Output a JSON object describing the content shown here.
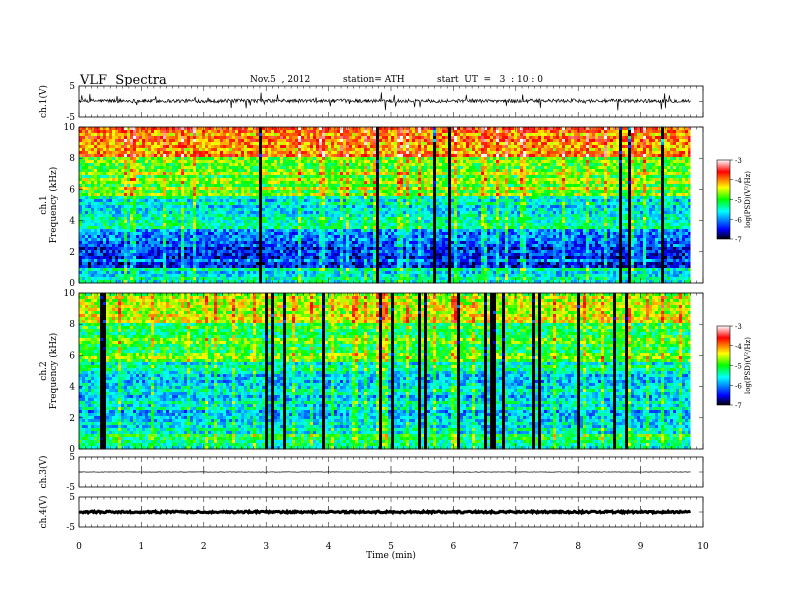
{
  "header": {
    "title": "VLF  Spectra",
    "date": "Nov.5  , 2012",
    "station": "station= ATH",
    "start": "start  UT  =   3  : 10 : 0"
  },
  "chart_data": [
    {
      "type": "line",
      "title": "",
      "ylabel": "ch.1(V)",
      "ylim": [
        -5,
        5
      ],
      "yticks": [
        "5",
        "-5"
      ],
      "description_values": {
        "baseline": 0,
        "noise_amplitude": 1.5
      },
      "xlim": [
        0,
        10
      ]
    },
    {
      "type": "heatmap",
      "ylabel": "ch.1\nFrequency (kHz)",
      "ylabel_lines": [
        "ch.1",
        "Frequency  (kHz)"
      ],
      "ylim": [
        0,
        10
      ],
      "yticks": [
        "0",
        "2",
        "4",
        "6",
        "8",
        "10"
      ],
      "xlim": [
        0,
        9.8
      ],
      "colorbar": {
        "label": "log(PSD)(V^2/Hz)",
        "label_text": "log(PSD)(V²/Hz)",
        "range": [
          -7,
          -3
        ],
        "ticks": [
          "-3",
          "-4",
          "-5",
          "-6",
          "-7"
        ]
      },
      "bands": [
        {
          "freq_range": [
            0,
            1
          ],
          "level": -5.6
        },
        {
          "freq_range": [
            1,
            3.5
          ],
          "level": -6.2
        },
        {
          "freq_range": [
            3.5,
            5.5
          ],
          "level": -5.5
        },
        {
          "freq_range": [
            5.5,
            8
          ],
          "level": -4.8
        },
        {
          "freq_range": [
            8,
            10
          ],
          "level": -4.0
        }
      ]
    },
    {
      "type": "heatmap",
      "ylabel_lines": [
        "ch.2",
        "Frequency  (kHz)"
      ],
      "ylim": [
        0,
        10
      ],
      "yticks": [
        "0",
        "2",
        "4",
        "6",
        "8",
        "10"
      ],
      "xlim": [
        0,
        9.8
      ],
      "colorbar": {
        "label_text": "log(PSD)(V²/Hz)",
        "range": [
          -7,
          -3
        ],
        "ticks": [
          "-3",
          "-4",
          "-5",
          "-6",
          "-7"
        ]
      },
      "bands": [
        {
          "freq_range": [
            0,
            1
          ],
          "level": -5.3
        },
        {
          "freq_range": [
            1,
            3.5
          ],
          "level": -5.7
        },
        {
          "freq_range": [
            3.5,
            5.5
          ],
          "level": -5.6
        },
        {
          "freq_range": [
            5.5,
            8
          ],
          "level": -5.0
        },
        {
          "freq_range": [
            8,
            10
          ],
          "level": -4.6
        }
      ]
    },
    {
      "type": "line",
      "ylabel": "ch.3(V)",
      "ylim": [
        -5,
        5
      ],
      "yticks": [
        "5",
        "-5"
      ],
      "xlim": [
        0,
        10
      ]
    },
    {
      "type": "line",
      "ylabel": "ch.4(V)",
      "ylim": [
        -5,
        5
      ],
      "yticks": [
        "5",
        "-5"
      ],
      "xlim": [
        0,
        10
      ],
      "xlabel": "Time  (min)",
      "xticks": [
        "0",
        "1",
        "2",
        "3",
        "4",
        "5",
        "6",
        "7",
        "8",
        "9",
        "10"
      ]
    }
  ],
  "colors": {
    "colormap": [
      "#000000",
      "#0000ff",
      "#00ffff",
      "#00ff00",
      "#ffff00",
      "#ff0000",
      "#ffffff"
    ]
  }
}
